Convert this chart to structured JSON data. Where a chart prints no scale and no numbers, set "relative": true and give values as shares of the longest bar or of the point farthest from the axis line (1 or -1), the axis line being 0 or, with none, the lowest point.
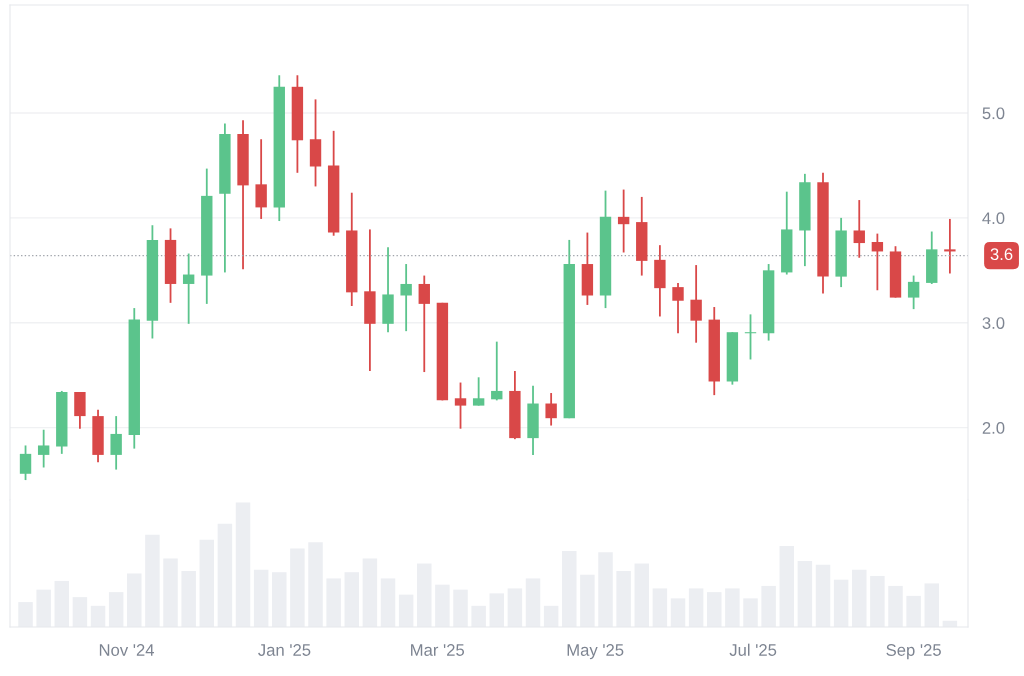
{
  "chart_data": [
    {
      "type": "candlestick",
      "x": [
        "2024-09-23",
        "2024-09-30",
        "2024-10-07",
        "2024-10-14",
        "2024-10-21",
        "2024-10-28",
        "2024-11-04",
        "2024-11-11",
        "2024-11-18",
        "2024-11-25",
        "2024-12-02",
        "2024-12-09",
        "2024-12-16",
        "2024-12-23",
        "2024-12-30",
        "2025-01-06",
        "2025-01-13",
        "2025-01-20",
        "2025-01-27",
        "2025-02-03",
        "2025-02-10",
        "2025-02-17",
        "2025-02-24",
        "2025-03-03",
        "2025-03-10",
        "2025-03-17",
        "2025-03-24",
        "2025-03-31",
        "2025-04-07",
        "2025-04-14",
        "2025-04-21",
        "2025-04-28",
        "2025-05-05",
        "2025-05-12",
        "2025-05-19",
        "2025-05-26",
        "2025-06-02",
        "2025-06-09",
        "2025-06-16",
        "2025-06-23",
        "2025-06-30",
        "2025-07-07",
        "2025-07-14",
        "2025-07-21",
        "2025-07-28",
        "2025-08-04",
        "2025-08-11",
        "2025-08-18",
        "2025-08-25",
        "2025-09-01",
        "2025-09-08",
        "2025-09-15"
      ],
      "ohlc": [
        [
          1.56,
          1.83,
          1.5,
          1.75
        ],
        [
          1.74,
          1.98,
          1.62,
          1.83
        ],
        [
          1.82,
          2.35,
          1.75,
          2.34
        ],
        [
          2.34,
          2.34,
          1.99,
          2.11
        ],
        [
          2.11,
          2.17,
          1.67,
          1.74
        ],
        [
          1.74,
          2.11,
          1.6,
          1.94
        ],
        [
          1.93,
          3.14,
          1.8,
          3.03
        ],
        [
          3.02,
          3.93,
          2.85,
          3.79
        ],
        [
          3.79,
          3.9,
          3.19,
          3.37
        ],
        [
          3.37,
          3.66,
          2.99,
          3.46
        ],
        [
          3.45,
          4.47,
          3.18,
          4.21
        ],
        [
          4.23,
          4.9,
          3.48,
          4.8
        ],
        [
          4.8,
          4.93,
          3.51,
          4.31
        ],
        [
          4.32,
          4.75,
          3.99,
          4.1
        ],
        [
          4.1,
          5.36,
          3.97,
          5.25
        ],
        [
          5.25,
          5.36,
          4.43,
          4.74
        ],
        [
          4.75,
          5.13,
          4.3,
          4.49
        ],
        [
          4.5,
          4.83,
          3.83,
          3.86
        ],
        [
          3.88,
          4.24,
          3.16,
          3.29
        ],
        [
          3.3,
          3.89,
          2.54,
          2.99
        ],
        [
          2.99,
          3.72,
          2.91,
          3.27
        ],
        [
          3.26,
          3.56,
          2.92,
          3.37
        ],
        [
          3.37,
          3.45,
          2.53,
          3.18
        ],
        [
          3.19,
          3.19,
          2.26,
          2.26
        ],
        [
          2.28,
          2.43,
          1.99,
          2.21
        ],
        [
          2.21,
          2.48,
          2.21,
          2.28
        ],
        [
          2.27,
          2.82,
          2.26,
          2.35
        ],
        [
          2.35,
          2.54,
          1.89,
          1.9
        ],
        [
          1.9,
          2.4,
          1.74,
          2.23
        ],
        [
          2.23,
          2.33,
          2.02,
          2.09
        ],
        [
          2.09,
          3.79,
          2.09,
          3.56
        ],
        [
          3.56,
          3.86,
          3.17,
          3.26
        ],
        [
          3.26,
          4.26,
          3.14,
          4.01
        ],
        [
          4.01,
          4.27,
          3.67,
          3.94
        ],
        [
          3.96,
          4.2,
          3.45,
          3.59
        ],
        [
          3.6,
          3.74,
          3.06,
          3.33
        ],
        [
          3.34,
          3.38,
          2.9,
          3.21
        ],
        [
          3.22,
          3.55,
          2.81,
          3.02
        ],
        [
          3.03,
          3.15,
          2.31,
          2.44
        ],
        [
          2.44,
          2.91,
          2.41,
          2.91
        ],
        [
          2.9,
          3.08,
          2.65,
          2.91
        ],
        [
          2.9,
          3.56,
          2.83,
          3.5
        ],
        [
          3.48,
          4.25,
          3.46,
          3.89
        ],
        [
          3.88,
          4.42,
          3.54,
          4.34
        ],
        [
          4.34,
          4.43,
          3.28,
          3.44
        ],
        [
          3.44,
          4.0,
          3.34,
          3.88
        ],
        [
          3.88,
          4.17,
          3.62,
          3.76
        ],
        [
          3.77,
          3.85,
          3.31,
          3.68
        ],
        [
          3.68,
          3.73,
          3.24,
          3.24
        ],
        [
          3.24,
          3.45,
          3.13,
          3.39
        ],
        [
          3.38,
          3.87,
          3.37,
          3.7
        ],
        [
          3.7,
          3.99,
          3.47,
          3.68
        ]
      ],
      "colors": [
        "#5bc48c",
        "#5bc48c",
        "#5bc48c",
        "#d94848",
        "#d94848",
        "#5bc48c",
        "#5bc48c",
        "#5bc48c",
        "#d94848",
        "#5bc48c",
        "#5bc48c",
        "#5bc48c",
        "#d94848",
        "#d94848",
        "#5bc48c",
        "#d94848",
        "#d94848",
        "#d94848",
        "#d94848",
        "#d94848",
        "#5bc48c",
        "#5bc48c",
        "#d94848",
        "#d94848",
        "#d94848",
        "#5bc48c",
        "#5bc48c",
        "#d94848",
        "#5bc48c",
        "#d94848",
        "#5bc48c",
        "#d94848",
        "#5bc48c",
        "#d94848",
        "#d94848",
        "#d94848",
        "#d94848",
        "#d94848",
        "#d94848",
        "#5bc48c",
        "#5bc48c",
        "#5bc48c",
        "#5bc48c",
        "#5bc48c",
        "#d94848",
        "#5bc48c",
        "#d94848",
        "#d94848",
        "#d94848",
        "#5bc48c",
        "#5bc48c",
        "#d94848"
      ],
      "xlim": [
        "2024-09-17",
        "2025-09-22"
      ],
      "ylim": [
        1.31,
        6.03
      ],
      "yticks": [
        {
          "value": 2,
          "label": "2.0"
        },
        {
          "value": 3,
          "label": "3.0"
        },
        {
          "value": 4,
          "label": "4.0"
        },
        {
          "value": 5,
          "label": "5.0"
        }
      ],
      "grid": "y",
      "tick_labels": "y",
      "ref_lines": [
        {
          "axis": "y",
          "value": 3.64,
          "label": "3.6",
          "color": "#a0a4ab",
          "line_style": "dotted"
        }
      ]
    },
    {
      "type": "bar",
      "relative": true,
      "x": [
        "2024-09-23",
        "2024-09-30",
        "2024-10-07",
        "2024-10-14",
        "2024-10-21",
        "2024-10-28",
        "2024-11-04",
        "2024-11-11",
        "2024-11-18",
        "2024-11-25",
        "2024-12-02",
        "2024-12-09",
        "2024-12-16",
        "2024-12-23",
        "2024-12-30",
        "2025-01-06",
        "2025-01-13",
        "2025-01-20",
        "2025-01-27",
        "2025-02-03",
        "2025-02-10",
        "2025-02-17",
        "2025-02-24",
        "2025-03-03",
        "2025-03-10",
        "2025-03-17",
        "2025-03-24",
        "2025-03-31",
        "2025-04-07",
        "2025-04-14",
        "2025-04-21",
        "2025-04-28",
        "2025-05-05",
        "2025-05-12",
        "2025-05-19",
        "2025-05-26",
        "2025-06-02",
        "2025-06-09",
        "2025-06-16",
        "2025-06-23",
        "2025-06-30",
        "2025-07-07",
        "2025-07-14",
        "2025-07-21",
        "2025-07-28",
        "2025-08-04",
        "2025-08-11",
        "2025-08-18",
        "2025-08-25",
        "2025-09-01",
        "2025-09-08",
        "2025-09-15"
      ],
      "values": [
        0.2,
        0.3,
        0.37,
        0.24,
        0.17,
        0.28,
        0.43,
        0.74,
        0.55,
        0.45,
        0.7,
        0.83,
        1,
        0.46,
        0.44,
        0.63,
        0.68,
        0.39,
        0.44,
        0.55,
        0.39,
        0.26,
        0.51,
        0.34,
        0.3,
        0.17,
        0.27,
        0.31,
        0.39,
        0.17,
        0.61,
        0.42,
        0.6,
        0.45,
        0.51,
        0.31,
        0.23,
        0.31,
        0.28,
        0.31,
        0.23,
        0.33,
        0.65,
        0.53,
        0.5,
        0.38,
        0.46,
        0.41,
        0.33,
        0.25,
        0.35,
        0.05
      ],
      "color": "#eceef2",
      "xlim": [
        "2024-09-17",
        "2025-09-22"
      ],
      "xticks": [
        {
          "value": "2024-11-01",
          "label": "Nov '24"
        },
        {
          "value": "2025-01-01",
          "label": "Jan '25"
        },
        {
          "value": "2025-03-01",
          "label": "Mar '25"
        },
        {
          "value": "2025-05-01",
          "label": "May '25"
        },
        {
          "value": "2025-07-01",
          "label": "Jul '25"
        },
        {
          "value": "2025-09-01",
          "label": "Sep '25"
        }
      ],
      "tick_labels": "x"
    }
  ]
}
